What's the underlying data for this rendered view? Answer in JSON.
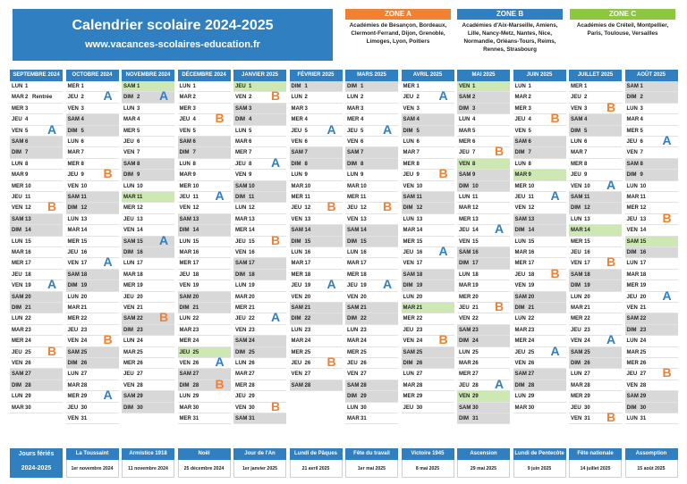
{
  "header": {
    "title": "Calendrier scolaire 2024-2025",
    "url": "www.vacances-scolaires-education.fr"
  },
  "colors": {
    "blue": "#2f7fc1",
    "zoneA": "#f08133",
    "zoneB": "#2f7fc1",
    "zoneC": "#8dc63f",
    "weekend": "#d8d8d8",
    "ferie": "#cde8b2"
  },
  "zones": [
    {
      "label": "ZONE A",
      "text": "Académies de Besançon, Bordeaux, Clermont-Ferrand, Dijon, Grenoble, Limoges, Lyon, Poitiers"
    },
    {
      "label": "ZONE B",
      "text": "Académies d'Aix-Marseille, Amiens, Lille, Nancy-Metz, Nantes, Nice, Normandie, Orléans-Tours, Reims, Rennes, Strasbourg"
    },
    {
      "label": "ZONE C",
      "text": "Académies de Créteil, Montpellier, Paris, Toulouse, Versailles"
    }
  ],
  "months": [
    {
      "name": "SEPTEMBRE 2024",
      "start": 0,
      "days": 30,
      "notes": {
        "2": "Rentrée"
      },
      "hol": [],
      "labels": [
        {
          "z": "A",
          "d": 5,
          "side": "r"
        },
        {
          "z": "B",
          "d": 12,
          "side": "r"
        },
        {
          "z": "B",
          "d": 25,
          "side": "r"
        },
        {
          "z": "A",
          "d": 19,
          "side": "r"
        }
      ]
    },
    {
      "name": "OCTOBRE 2024",
      "start": 2,
      "days": 31,
      "notes": {},
      "hol": [],
      "labels": [
        {
          "z": "A",
          "d": 2,
          "side": "r"
        },
        {
          "z": "B",
          "d": 9,
          "side": "r"
        },
        {
          "z": "A",
          "d": 17,
          "side": "r"
        },
        {
          "z": "B",
          "d": 24,
          "side": "r"
        },
        {
          "z": "A",
          "d": 29,
          "side": "r"
        }
      ]
    },
    {
      "name": "NOVEMBRE 2024",
      "start": 5,
      "days": 30,
      "notes": {},
      "hol": [
        1,
        11
      ],
      "labels": [
        {
          "z": "A",
          "d": 15,
          "side": "r"
        },
        {
          "z": "B",
          "d": 22,
          "side": "r"
        },
        {
          "z": "A",
          "d": 2,
          "side": "r"
        }
      ]
    },
    {
      "name": "DÉCEMBRE 2024",
      "start": 0,
      "days": 31,
      "notes": {},
      "hol": [
        25
      ],
      "labels": [
        {
          "z": "B",
          "d": 4,
          "side": "r"
        },
        {
          "z": "A",
          "d": 11,
          "side": "r"
        },
        {
          "z": "A",
          "d": 26,
          "side": "r"
        },
        {
          "z": "B",
          "d": 28,
          "side": "r"
        }
      ]
    },
    {
      "name": "JANVIER 2025",
      "start": 3,
      "days": 31,
      "notes": {},
      "hol": [
        1
      ],
      "labels": [
        {
          "z": "B",
          "d": 2,
          "side": "r"
        },
        {
          "z": "A",
          "d": 8,
          "side": "r"
        },
        {
          "z": "B",
          "d": 15,
          "side": "r"
        },
        {
          "z": "A",
          "d": 22,
          "side": "r"
        },
        {
          "z": "B",
          "d": 30,
          "side": "r"
        }
      ]
    },
    {
      "name": "FÉVRIER 2025",
      "start": 6,
      "days": 28,
      "notes": {},
      "hol": [],
      "labels": [
        {
          "z": "A",
          "d": 5,
          "side": "r"
        },
        {
          "z": "B",
          "d": 12,
          "side": "r"
        },
        {
          "z": "A",
          "d": 19,
          "side": "r"
        },
        {
          "z": "B",
          "d": 26,
          "side": "r"
        }
      ]
    },
    {
      "name": "MARS 2025",
      "start": 6,
      "days": 31,
      "notes": {},
      "hol": [],
      "labels": [
        {
          "z": "A",
          "d": 5,
          "side": "r"
        },
        {
          "z": "B",
          "d": 12,
          "side": "r"
        },
        {
          "z": "A",
          "d": 19,
          "side": "r"
        }
      ]
    },
    {
      "name": "AVRIL 2025",
      "start": 2,
      "days": 30,
      "notes": {},
      "hol": [
        21
      ],
      "labels": [
        {
          "z": "A",
          "d": 2,
          "side": "r"
        },
        {
          "z": "B",
          "d": 9,
          "side": "r"
        },
        {
          "z": "A",
          "d": 16,
          "side": "r"
        },
        {
          "z": "B",
          "d": 24,
          "side": "r"
        }
      ]
    },
    {
      "name": "MAI 2025",
      "start": 4,
      "days": 31,
      "notes": {},
      "hol": [
        1,
        8,
        29
      ],
      "labels": [
        {
          "z": "B",
          "d": 7,
          "side": "r"
        },
        {
          "z": "A",
          "d": 14,
          "side": "r"
        },
        {
          "z": "B",
          "d": 21,
          "side": "r"
        },
        {
          "z": "A",
          "d": 28,
          "side": "r"
        }
      ]
    },
    {
      "name": "JUIN 2025",
      "start": 0,
      "days": 30,
      "notes": {},
      "hol": [
        9
      ],
      "labels": [
        {
          "z": "B",
          "d": 4,
          "side": "r"
        },
        {
          "z": "A",
          "d": 11,
          "side": "r"
        },
        {
          "z": "B",
          "d": 18,
          "side": "r"
        },
        {
          "z": "A",
          "d": 25,
          "side": "r"
        }
      ]
    },
    {
      "name": "JUILLET 2025",
      "start": 2,
      "days": 31,
      "notes": {},
      "hol": [
        14
      ],
      "labels": [
        {
          "z": "B",
          "d": 3,
          "side": "r"
        },
        {
          "z": "A",
          "d": 10,
          "side": "r"
        },
        {
          "z": "B",
          "d": 17,
          "side": "r"
        },
        {
          "z": "A",
          "d": 24,
          "side": "r"
        },
        {
          "z": "B",
          "d": 31,
          "side": "r"
        }
      ]
    },
    {
      "name": "AOÛT 2025",
      "start": 5,
      "days": 31,
      "notes": {},
      "hol": [
        15
      ],
      "labels": [
        {
          "z": "A",
          "d": 6,
          "side": "r"
        },
        {
          "z": "B",
          "d": 13,
          "side": "r"
        },
        {
          "z": "A",
          "d": 20,
          "side": "r"
        },
        {
          "z": "B",
          "d": 27,
          "side": "r"
        }
      ]
    }
  ],
  "weekdays": [
    "LUN",
    "MAR",
    "MER",
    "JEU",
    "VEN",
    "SAM",
    "DIM"
  ],
  "feries": [
    {
      "name": "Jours fériés",
      "date": "2024-2025"
    },
    {
      "name": "La Toussaint",
      "date": "1er novembre 2024"
    },
    {
      "name": "Armistice 1918",
      "date": "11 novembre 2024"
    },
    {
      "name": "Noël",
      "date": "25 décembre 2024"
    },
    {
      "name": "Jour de l'An",
      "date": "1er janvier 2025"
    },
    {
      "name": "Lundi de Pâques",
      "date": "21 avril 2025"
    },
    {
      "name": "Fête du travail",
      "date": "1er mai 2025"
    },
    {
      "name": "Victoire 1945",
      "date": "8 mai 2025"
    },
    {
      "name": "Ascension",
      "date": "29 mai 2025"
    },
    {
      "name": "Lundi de Pentecôte",
      "date": "9 juin 2025"
    },
    {
      "name": "Fête nationale",
      "date": "14 juillet 2025"
    },
    {
      "name": "Assomption",
      "date": "15 août 2025"
    }
  ]
}
